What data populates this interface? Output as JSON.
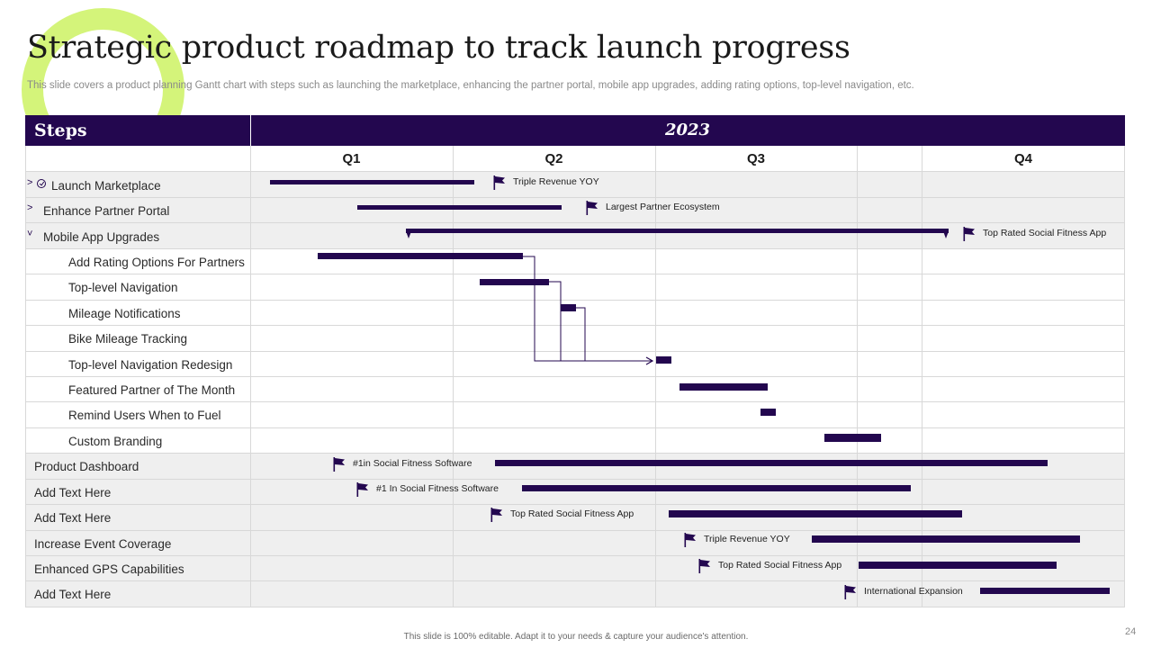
{
  "title": "Strategic product roadmap to track launch progress",
  "subtitle": "This slide covers a product planning Gantt chart with steps such as launching the marketplace, enhancing the partner portal, mobile app upgrades, adding rating options, top-level navigation, etc.",
  "header": {
    "steps": "Steps",
    "year": "2023"
  },
  "quarters": [
    "Q1",
    "Q2",
    "Q3",
    "Q4"
  ],
  "rows": [
    {
      "label": "Launch Marketplace",
      "expander": ">",
      "clock": true
    },
    {
      "label": "Enhance Partner Portal",
      "expander": ">"
    },
    {
      "label": "Mobile App Upgrades",
      "expander": "˅"
    },
    {
      "label": "Add Rating Options For Partners"
    },
    {
      "label": "Top-level  Navigation"
    },
    {
      "label": "Mileage Notifications"
    },
    {
      "label": "Bike Mileage Tracking"
    },
    {
      "label": "Top-level  Navigation  Redesign"
    },
    {
      "label": "Featured Partner of The Month"
    },
    {
      "label": "Remind Users When to Fuel"
    },
    {
      "label": "Custom Branding"
    },
    {
      "label": "Product Dashboard"
    },
    {
      "label": "Add Text Here"
    },
    {
      "label": "Add Text Here"
    },
    {
      "label": "Increase Event Coverage"
    },
    {
      "label": "Enhanced GPS Capabilities"
    },
    {
      "label": "Add Text Here"
    }
  ],
  "milestones": [
    "Triple Revenue YOY",
    "Largest Partner Ecosystem",
    "Top Rated Social Fitness App",
    "#1in Social Fitness Software",
    "#1 In Social Fitness Software",
    "Top Rated Social Fitness App",
    "Triple Revenue YOY",
    "Top Rated Social Fitness App",
    "International Expansion"
  ],
  "colors": {
    "accent": "#23074f",
    "highlight": "#d4f47a",
    "band": "#efefef"
  },
  "footer": "This slide is 100% editable.  Adapt it to your needs & capture your audience's attention.",
  "page_number": "24"
}
